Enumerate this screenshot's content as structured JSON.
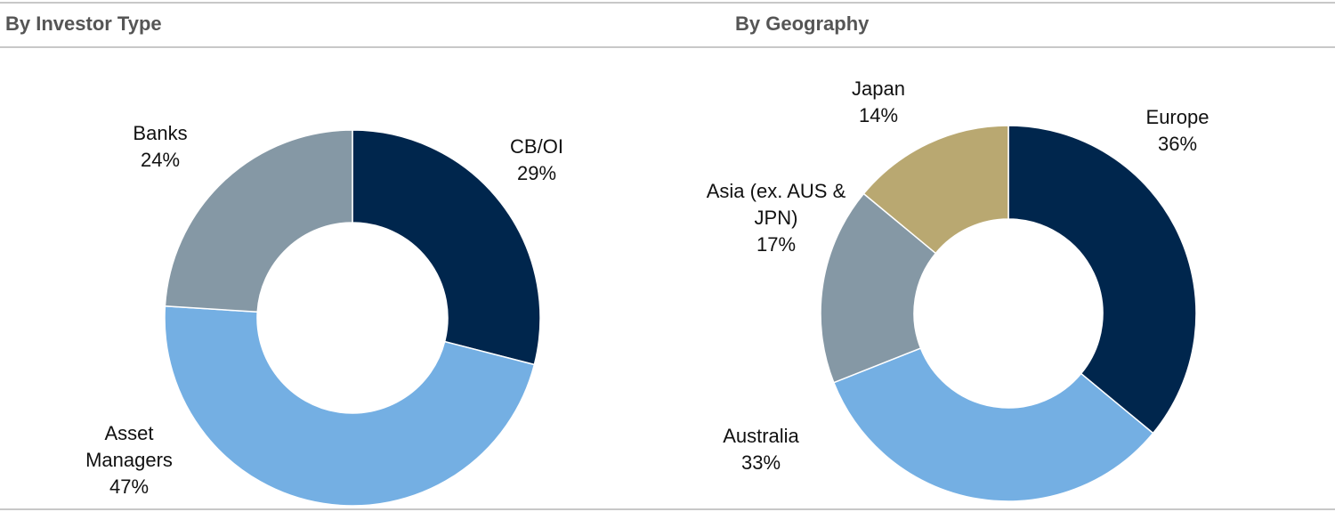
{
  "chart_data": [
    {
      "type": "pie",
      "title": "By Investor Type",
      "categories": [
        "CB/OI",
        "Asset Managers",
        "Banks"
      ],
      "values": [
        29,
        47,
        24
      ],
      "value_labels": [
        "29%",
        "47%",
        "24%"
      ],
      "colors": [
        "#00264d",
        "#74afe3",
        "#8598a5"
      ]
    },
    {
      "type": "pie",
      "title": "By Geography",
      "categories": [
        "Europe",
        "Australia",
        "Asia (ex. AUS & JPN)",
        "Japan"
      ],
      "values": [
        36,
        33,
        17,
        14
      ],
      "value_labels": [
        "36%",
        "33%",
        "17%",
        "14%"
      ],
      "colors": [
        "#00264d",
        "#74afe3",
        "#8598a5",
        "#b9a871"
      ]
    }
  ]
}
